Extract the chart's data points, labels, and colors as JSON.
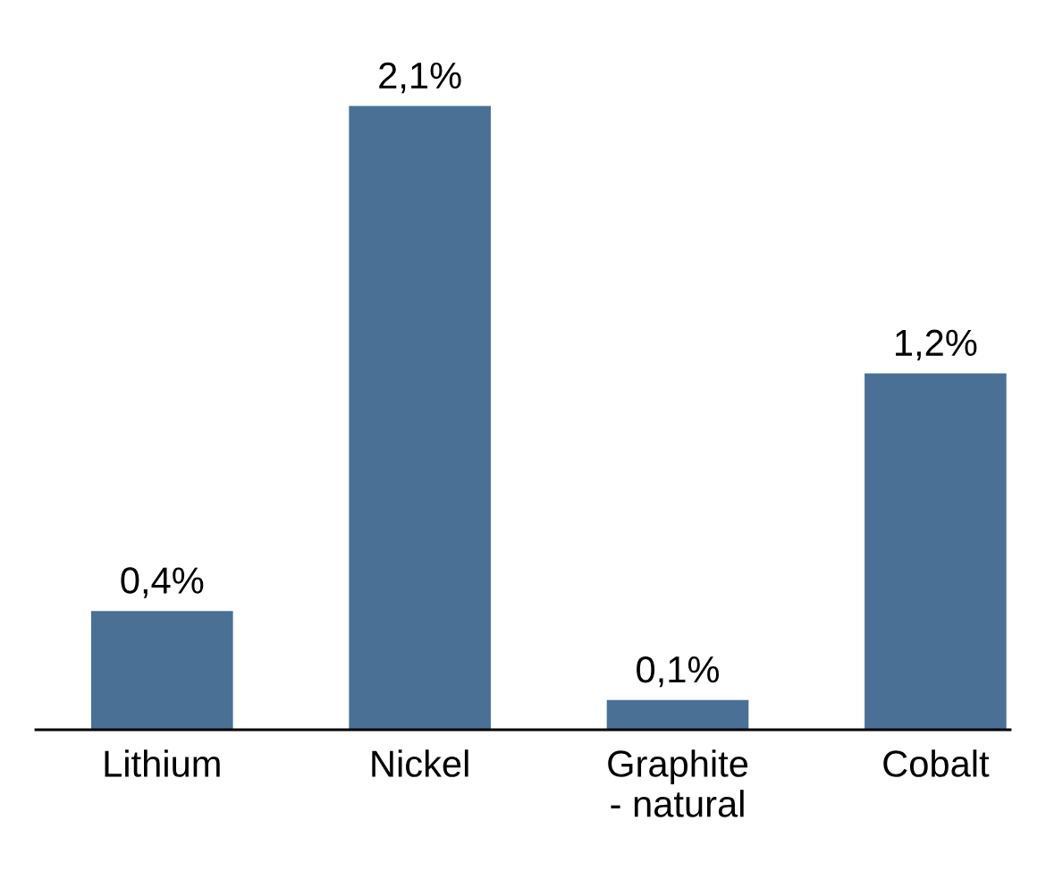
{
  "chart_data": {
    "type": "bar",
    "categories": [
      "Lithium",
      "Nickel",
      "Graphite\n- natural",
      "Cobalt"
    ],
    "values": [
      0.4,
      2.1,
      0.1,
      1.2
    ],
    "value_labels": [
      "0,4%",
      "2,1%",
      "0,1%",
      "1,2%"
    ],
    "color": "#4a7096",
    "grid": false,
    "legend": false
  }
}
